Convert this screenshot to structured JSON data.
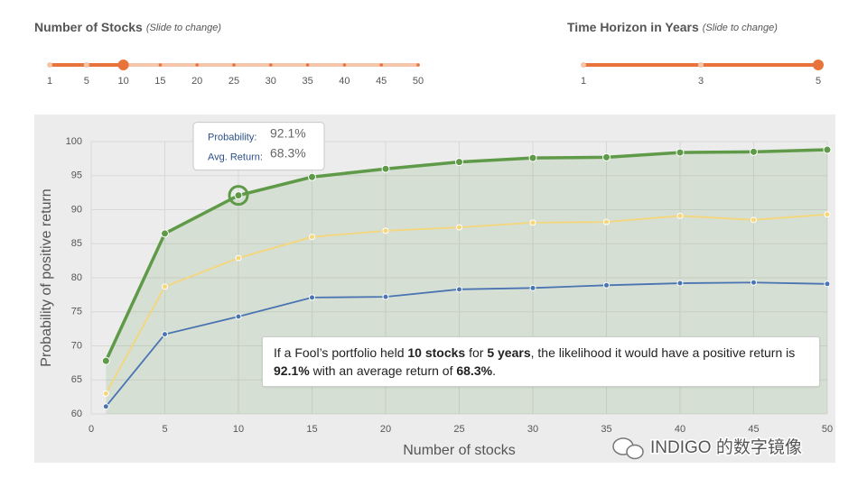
{
  "sliders": [
    {
      "label": "Number of Stocks",
      "hint": "(Slide to change)",
      "ticks": [
        1,
        5,
        10,
        15,
        20,
        25,
        30,
        35,
        40,
        45,
        50
      ],
      "value": 10
    },
    {
      "label": "Time Horizon in Years",
      "hint": "(Slide to change)",
      "ticks": [
        1,
        3,
        5
      ],
      "value": 5
    }
  ],
  "slider_color": "#e8743b",
  "chart_data": {
    "type": "line",
    "x": [
      1,
      5,
      10,
      15,
      20,
      25,
      30,
      35,
      40,
      45,
      50
    ],
    "xlabel": "Number of stocks",
    "ylabel": "Probability of positive return",
    "xlim": [
      0,
      50
    ],
    "ylim": [
      60,
      100
    ],
    "xticks": [
      0,
      5,
      10,
      15,
      20,
      25,
      30,
      35,
      40,
      45,
      50
    ],
    "yticks": [
      60,
      65,
      70,
      75,
      80,
      85,
      90,
      95,
      100
    ],
    "grid": true,
    "series": [
      {
        "color": "#5f9a48",
        "area": true,
        "values": [
          67.8,
          86.5,
          92.1,
          94.8,
          96.0,
          97.0,
          97.6,
          97.7,
          98.4,
          98.5,
          98.8
        ]
      },
      {
        "color": "#f5d67a",
        "values": [
          63.0,
          78.7,
          82.9,
          86.0,
          86.9,
          87.4,
          88.1,
          88.2,
          89.1,
          88.5,
          89.3
        ]
      },
      {
        "color": "#4a74b2",
        "values": [
          61.1,
          71.7,
          74.3,
          77.1,
          77.2,
          78.3,
          78.5,
          78.9,
          79.2,
          79.3,
          79.1
        ]
      }
    ],
    "tooltip": [
      {
        "label": "Probability:",
        "text": "92.1%"
      },
      {
        "label": "Avg. Return:",
        "text": "68.3%"
      }
    ]
  },
  "caption": [
    "If a Fool’s portfolio held ",
    "10 stocks",
    " for ",
    "5 years",
    ", the likelihood it would have a positive return is ",
    "92.1%",
    " with an average return of ",
    "68.3%",
    "."
  ],
  "watermark": "INDIGO 的数字镜像"
}
